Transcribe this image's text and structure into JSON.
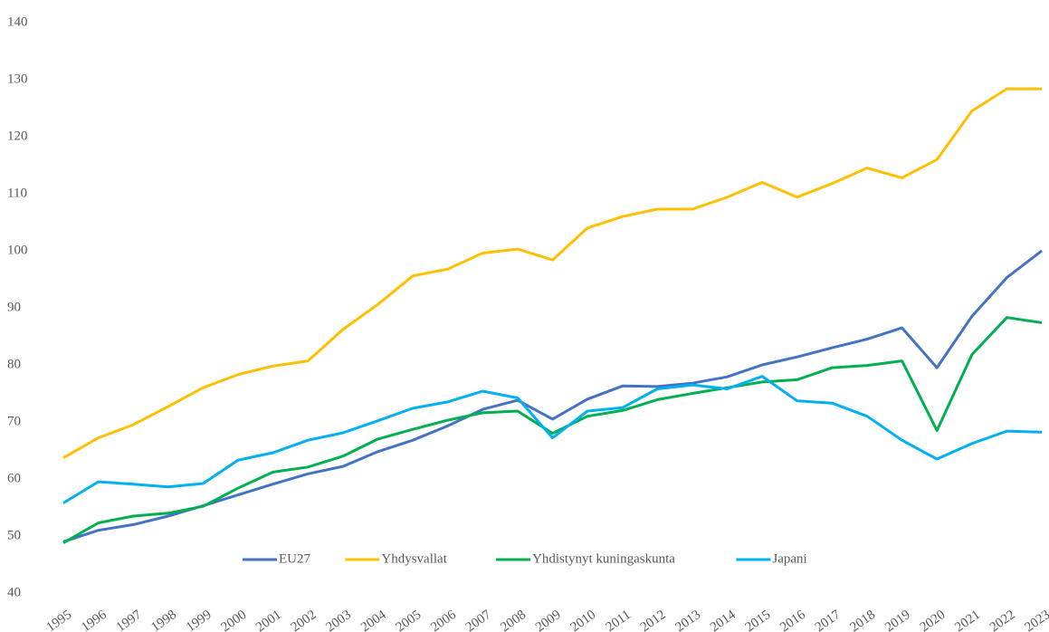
{
  "chart_data": {
    "type": "line",
    "categories": [
      "1995",
      "1996",
      "1997",
      "1998",
      "1999",
      "2000",
      "2001",
      "2002",
      "2003",
      "2004",
      "2005",
      "2006",
      "2007",
      "2008",
      "2009",
      "2010",
      "2011",
      "2012",
      "2013",
      "2014",
      "2015",
      "2016",
      "2017",
      "2018",
      "2019",
      "2020",
      "2021",
      "2022",
      "2023"
    ],
    "series": [
      {
        "name": "EU27",
        "color": "#4472c4",
        "values": [
          49,
          51,
          52,
          53.5,
          55.3,
          57.2,
          59.1,
          60.9,
          62.2,
          64.8,
          66.8,
          69.3,
          72.2,
          73.8,
          70.5,
          74,
          76.3,
          76.2,
          76.8,
          77.9,
          80,
          81.4,
          83,
          84.5,
          86.5,
          79.5,
          88.5,
          95.3,
          100
        ]
      },
      {
        "name": "Yhdysvallat",
        "color": "#ffc000",
        "values": [
          63.7,
          67.2,
          69.5,
          72.7,
          76,
          78.3,
          79.8,
          80.7,
          86.2,
          90.6,
          95.6,
          96.8,
          99.6,
          100.3,
          98.4,
          104,
          106,
          107.3,
          107.3,
          109.4,
          112,
          109.4,
          111.8,
          114.5,
          112.8,
          116,
          124.5,
          128.4,
          128.4
        ]
      },
      {
        "name": "Yhdistynyt kuningaskunta",
        "color": "#00b050",
        "values": [
          48.8,
          52.3,
          53.5,
          54,
          55.2,
          58.4,
          61.2,
          62.1,
          64,
          67,
          68.7,
          70.3,
          71.6,
          71.9,
          68,
          71,
          72,
          73.9,
          75,
          76,
          77,
          77.4,
          79.5,
          79.9,
          80.7,
          68.5,
          81.8,
          88.3,
          87.4
        ]
      },
      {
        "name": "Japani",
        "color": "#00b0f0",
        "values": [
          55.8,
          59.5,
          59.1,
          58.6,
          59.2,
          63.3,
          64.6,
          66.8,
          68.1,
          70.2,
          72.4,
          73.5,
          75.4,
          74.2,
          67.2,
          71.9,
          72.5,
          75.8,
          76.5,
          75.8,
          78,
          73.7,
          73.3,
          71,
          66.8,
          63.5,
          66.2,
          68.4,
          68.2
        ]
      }
    ],
    "ylim": [
      40,
      140
    ],
    "yticks": [
      40,
      50,
      60,
      70,
      80,
      90,
      100,
      110,
      120,
      130,
      140
    ],
    "grid": false,
    "legend": "bottom"
  }
}
